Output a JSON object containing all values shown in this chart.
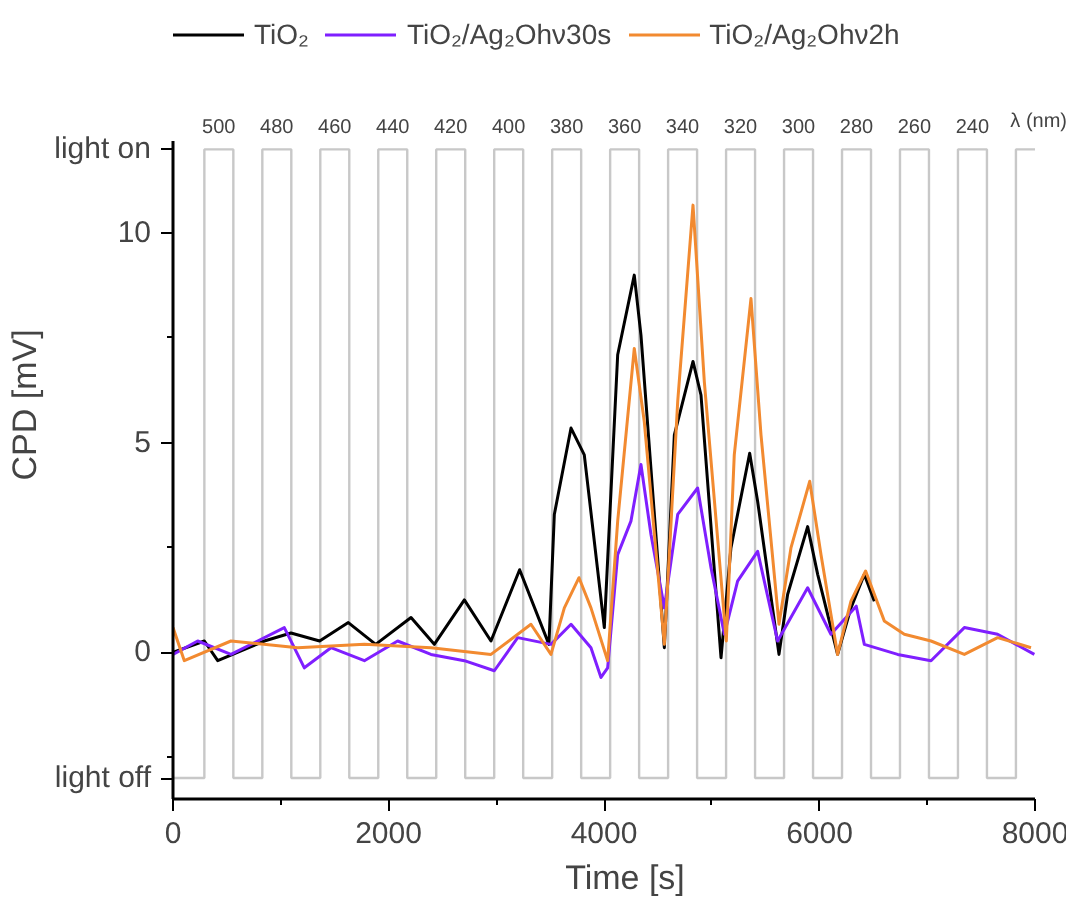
{
  "chart_data": {
    "type": "line",
    "xlabel": "Time [s]",
    "ylabel": "CPD [mV]",
    "xlim": [
      0,
      8000
    ],
    "ylim": [
      -3.5,
      12.2
    ],
    "xticks": [
      0,
      {
        "value": 1000,
        "label": null
      },
      2000,
      {
        "value": 3000,
        "label": null
      },
      4000,
      {
        "value": 5000,
        "label": null
      },
      6000,
      {
        "value": 7000,
        "label": null
      },
      8000
    ],
    "yticks": [
      {
        "value": -3,
        "label": "light off"
      },
      {
        "value": -2.5,
        "label": null
      },
      0,
      {
        "value": 2.5,
        "label": null
      },
      5,
      {
        "value": 7.5,
        "label": null
      },
      10,
      {
        "value": 12,
        "label": "light on"
      }
    ],
    "annotations": [
      {
        "text": "500",
        "x": 425,
        "y": 12
      },
      {
        "text": "480",
        "x": 963,
        "y": 12
      },
      {
        "text": "460",
        "x": 1501,
        "y": 12
      },
      {
        "text": "440",
        "x": 2039,
        "y": 12
      },
      {
        "text": "420",
        "x": 2577,
        "y": 12
      },
      {
        "text": "400",
        "x": 3115,
        "y": 12
      },
      {
        "text": "380",
        "x": 3653,
        "y": 12
      },
      {
        "text": "360",
        "x": 4191,
        "y": 12
      },
      {
        "text": "340",
        "x": 4729,
        "y": 12
      },
      {
        "text": "320",
        "x": 5267,
        "y": 12
      },
      {
        "text": "300",
        "x": 5805,
        "y": 12
      },
      {
        "text": "280",
        "x": 6343,
        "y": 12
      },
      {
        "text": "260",
        "x": 6881,
        "y": 12
      },
      {
        "text": "240",
        "x": 7419,
        "y": 12
      },
      "λ (nm)"
    ],
    "grid": false,
    "legend": "top",
    "series": [
      {
        "type": "step",
        "color": "#c8c8c8",
        "x": [
          0,
          291,
          560,
          829,
          1098,
          1367,
          1636,
          1905,
          2174,
          2443,
          2712,
          2981,
          3250,
          3519,
          3788,
          4057,
          4326,
          4595,
          4864,
          5133,
          5402,
          5671,
          5940,
          6209,
          6478,
          6747,
          7016,
          7285,
          7554,
          7823,
          8000
        ],
        "values": [
          -3,
          12,
          -3,
          12,
          -3,
          12,
          -3,
          12,
          -3,
          12,
          -3,
          12,
          -3,
          12,
          -3,
          12,
          -3,
          12,
          -3,
          12,
          -3,
          12,
          -3,
          12,
          -3,
          12,
          -3,
          12,
          -3,
          12,
          12
        ]
      },
      {
        "name": "TiO₂",
        "color": "#000000",
        "x": [
          0,
          291,
          415,
          848,
          1095,
          1361,
          1627,
          1881,
          2209,
          2425,
          2704,
          2951,
          3217,
          3489,
          3539,
          3694,
          3817,
          4003,
          4127,
          4281,
          4343,
          4560,
          4653,
          4826,
          4900,
          5086,
          5178,
          5352,
          5426,
          5624,
          5704,
          5890,
          5983,
          6168,
          6292,
          6416,
          6509
        ],
        "values": [
          0,
          0.27,
          -0.2,
          0.27,
          0.46,
          0.27,
          0.71,
          0.19,
          0.83,
          0.19,
          1.25,
          0.27,
          1.97,
          0.19,
          3.29,
          5.35,
          4.71,
          0.59,
          7.1,
          9.0,
          7.57,
          0.11,
          5.19,
          6.94,
          6.14,
          -0.13,
          2.49,
          4.75,
          3.6,
          -0.05,
          1.38,
          3.0,
          1.86,
          -0.05,
          1.06,
          1.86,
          1.22
        ]
      },
      {
        "name": "TiO₂/Ag₂Ohν30s",
        "color": "#7f1fff",
        "x": [
          0,
          229,
          538,
          1033,
          1219,
          1466,
          1776,
          2085,
          2394,
          2704,
          2982,
          3199,
          3508,
          3694,
          3879,
          3972,
          4034,
          4127,
          4250,
          4343,
          4436,
          4560,
          4684,
          4869,
          4993,
          5117,
          5240,
          5426,
          5611,
          5890,
          6106,
          6341,
          6416,
          6725,
          7035,
          7344,
          7653,
          7994
        ],
        "values": [
          -0.05,
          0.27,
          -0.05,
          0.59,
          -0.37,
          0.11,
          -0.2,
          0.27,
          -0.05,
          -0.2,
          -0.44,
          0.35,
          0.19,
          0.67,
          0.11,
          -0.6,
          -0.37,
          2.33,
          3.13,
          4.48,
          2.81,
          1.06,
          3.29,
          3.92,
          2.02,
          0.43,
          1.7,
          2.41,
          0.27,
          1.54,
          0.43,
          1.1,
          0.19,
          -0.05,
          -0.2,
          0.59,
          0.43,
          -0.05
        ]
      },
      {
        "name": "TiO₂/Ag₂Ohν2h",
        "color": "#f28a30",
        "x": [
          0,
          105,
          538,
          1157,
          1776,
          2394,
          2951,
          3322,
          3508,
          3632,
          3768,
          3879,
          4034,
          4127,
          4281,
          4374,
          4560,
          4684,
          4826,
          4931,
          5135,
          5209,
          5364,
          5457,
          5624,
          5735,
          5909,
          6014,
          6168,
          6292,
          6428,
          6601,
          6787,
          7035,
          7344,
          7653,
          7963
        ],
        "values": [
          0.59,
          -0.2,
          0.27,
          0.11,
          0.19,
          0.11,
          -0.05,
          0.67,
          -0.05,
          1.06,
          1.78,
          1.06,
          -0.2,
          3.13,
          7.25,
          5.5,
          0.19,
          5.98,
          10.67,
          6.46,
          0.27,
          4.71,
          8.44,
          5.19,
          0.67,
          2.49,
          4.08,
          2.33,
          -0.05,
          1.22,
          1.94,
          0.75,
          0.43,
          0.27,
          -0.05,
          0.35,
          0.11
        ]
      }
    ]
  }
}
